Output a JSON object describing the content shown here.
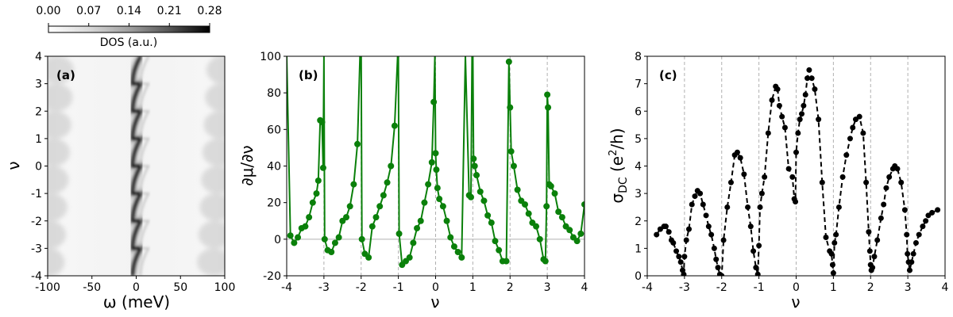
{
  "chart_data": [
    {
      "type": "heatmap",
      "panel_label": "(a)",
      "xlabel": "ω (meV)",
      "ylabel": "ν",
      "xlim": [
        -100,
        100
      ],
      "ylim": [
        -4,
        4
      ],
      "xticks": [
        -100,
        -50,
        0,
        50,
        100
      ],
      "yticks": [
        -4,
        -3,
        -2,
        -1,
        0,
        1,
        2,
        3,
        4
      ],
      "colorbar": {
        "label": "DOS (a.u.)",
        "range": [
          0.0,
          0.28
        ],
        "ticks": [
          "0.00",
          "0.07",
          "0.14",
          "0.21",
          "0.28"
        ],
        "placement": "top",
        "colormap": "greys"
      },
      "description_of_features": "dark vertical streak near ω≈0 meV that zig-zags between integer fillings; scalloped light-gray edges at |ω|≈70–100 meV"
    },
    {
      "type": "line",
      "panel_label": "(b)",
      "xlabel": "ν",
      "ylabel": "∂μ/∂ν",
      "xlim": [
        -4,
        4
      ],
      "ylim": [
        -20,
        100
      ],
      "xticks": [
        -4,
        -3,
        -2,
        -1,
        0,
        1,
        2,
        3,
        4
      ],
      "yticks": [
        -20,
        0,
        20,
        40,
        60,
        80,
        100
      ],
      "grid": "vertical dashed at integers",
      "zero_line": true,
      "color": "#0a800a",
      "marker": "circle",
      "series": [
        {
          "x": [
            -4.0,
            -3.9,
            -3.8,
            -3.7,
            -3.6,
            -3.5,
            -3.4,
            -3.3,
            -3.2,
            -3.15,
            -3.1,
            -3.05,
            -3.02,
            -3.0,
            -2.98,
            -2.9,
            -2.8,
            -2.7,
            -2.6,
            -2.5,
            -2.4,
            -2.3,
            -2.2,
            -2.1,
            -2.03,
            -2.0,
            -1.98,
            -1.9,
            -1.8,
            -1.7,
            -1.6,
            -1.5,
            -1.4,
            -1.3,
            -1.2,
            -1.1,
            -1.02,
            -1.0,
            -0.98,
            -0.9,
            -0.8,
            -0.7,
            -0.6,
            -0.5,
            -0.4,
            -0.3,
            -0.2,
            -0.1,
            -0.05,
            -0.02,
            0.0,
            0.02,
            0.05,
            0.1,
            0.2,
            0.3,
            0.4,
            0.5,
            0.6,
            0.7,
            0.8,
            0.9,
            0.95,
            0.98,
            1.0,
            1.02,
            1.05,
            1.1,
            1.2,
            1.3,
            1.4,
            1.5,
            1.6,
            1.7,
            1.8,
            1.9,
            1.97,
            2.0,
            2.03,
            2.1,
            2.2,
            2.3,
            2.4,
            2.5,
            2.6,
            2.7,
            2.8,
            2.9,
            2.95,
            2.98,
            3.0,
            3.02,
            3.05,
            3.1,
            3.2,
            3.3,
            3.4,
            3.5,
            3.6,
            3.7,
            3.8,
            3.9,
            4.0
          ],
          "y": [
            100,
            2,
            -2,
            1,
            6,
            7,
            12,
            20,
            25,
            32,
            65,
            64,
            39,
            100,
            0,
            -6,
            -7,
            -2,
            1,
            10,
            12,
            18,
            30,
            52,
            100,
            100,
            0,
            -8,
            -10,
            7,
            12,
            18,
            24,
            31,
            40,
            62,
            100,
            100,
            3,
            -14,
            -12,
            -10,
            -2,
            6,
            10,
            20,
            30,
            42,
            75,
            100,
            47,
            38,
            28,
            22,
            18,
            10,
            1,
            -4,
            -7,
            -10,
            100,
            24,
            23,
            100,
            100,
            44,
            40,
            35,
            26,
            21,
            13,
            9,
            -1,
            -6,
            -12,
            -12,
            97,
            72,
            48,
            40,
            27,
            21,
            19,
            14,
            9,
            7,
            0,
            -11,
            -12,
            18,
            79,
            72,
            30,
            29,
            25,
            15,
            12,
            7,
            5,
            1,
            -1,
            3,
            19
          ]
        }
      ]
    },
    {
      "type": "line",
      "panel_label": "(c)",
      "xlabel": "ν",
      "ylabel": "σ_DC (e²/h)",
      "ylabel_parts": {
        "main": "σ",
        "sub": "DC",
        "unit_open": " (e",
        "sup": "2",
        "unit_close": "/h)"
      },
      "xlim": [
        -4,
        4
      ],
      "ylim": [
        0,
        8
      ],
      "xticks": [
        -4,
        -3,
        -2,
        -1,
        0,
        1,
        2,
        3,
        4
      ],
      "yticks": [
        0,
        1,
        2,
        3,
        4,
        5,
        6,
        7,
        8
      ],
      "grid": "vertical dashed at integers",
      "color": "#000000",
      "marker": "circle",
      "linestyle": "dashed",
      "series": [
        {
          "x": [
            -3.75,
            -3.65,
            -3.55,
            -3.5,
            -3.42,
            -3.35,
            -3.3,
            -3.22,
            -3.15,
            -3.1,
            -3.05,
            -3.02,
            -3.0,
            -2.95,
            -2.88,
            -2.8,
            -2.72,
            -2.65,
            -2.58,
            -2.5,
            -2.42,
            -2.35,
            -2.28,
            -2.2,
            -2.15,
            -2.1,
            -2.05,
            -2.02,
            -2.0,
            -1.95,
            -1.85,
            -1.75,
            -1.65,
            -1.58,
            -1.5,
            -1.4,
            -1.3,
            -1.22,
            -1.15,
            -1.08,
            -1.03,
            -1.0,
            -0.97,
            -0.92,
            -0.85,
            -0.75,
            -0.65,
            -0.55,
            -0.5,
            -0.45,
            -0.38,
            -0.3,
            -0.2,
            -0.1,
            -0.05,
            -0.02,
            0.0,
            0.05,
            0.1,
            0.15,
            0.2,
            0.25,
            0.3,
            0.35,
            0.42,
            0.5,
            0.6,
            0.7,
            0.8,
            0.9,
            0.95,
            0.98,
            1.0,
            1.03,
            1.07,
            1.15,
            1.25,
            1.35,
            1.45,
            1.52,
            1.6,
            1.7,
            1.8,
            1.88,
            1.95,
            1.98,
            2.0,
            2.02,
            2.05,
            2.1,
            2.18,
            2.28,
            2.35,
            2.42,
            2.5,
            2.6,
            2.65,
            2.72,
            2.82,
            2.92,
            2.97,
            2.99,
            3.02,
            3.05,
            3.1,
            3.15,
            3.22,
            3.3,
            3.4,
            3.48,
            3.55,
            3.65,
            3.8
          ],
          "y": [
            1.5,
            1.7,
            1.8,
            1.8,
            1.6,
            1.3,
            1.2,
            0.9,
            0.7,
            0.5,
            0.2,
            0.05,
            0.7,
            1.3,
            1.7,
            2.6,
            2.9,
            3.1,
            3.0,
            2.6,
            2.2,
            1.8,
            1.5,
            1.0,
            0.6,
            0.3,
            0.05,
            0.0,
            0.0,
            1.3,
            2.5,
            3.4,
            4.4,
            4.5,
            4.3,
            3.7,
            2.5,
            1.8,
            0.9,
            0.3,
            0.05,
            1.1,
            2.5,
            3.0,
            3.6,
            5.2,
            6.4,
            6.9,
            6.8,
            6.2,
            5.8,
            5.4,
            3.9,
            3.6,
            2.8,
            2.7,
            4.5,
            5.2,
            5.7,
            5.9,
            6.2,
            6.6,
            7.2,
            7.5,
            7.2,
            6.8,
            5.7,
            3.4,
            1.4,
            0.9,
            0.8,
            0.4,
            0.1,
            1.2,
            1.5,
            2.5,
            3.6,
            4.4,
            5.0,
            5.4,
            5.7,
            5.8,
            5.2,
            3.4,
            1.6,
            0.9,
            0.4,
            0.2,
            0.3,
            0.7,
            1.3,
            2.1,
            2.6,
            3.2,
            3.6,
            3.9,
            4.0,
            3.9,
            3.4,
            2.4,
            1.5,
            0.8,
            0.5,
            0.2,
            0.5,
            0.8,
            1.2,
            1.5,
            1.8,
            2.0,
            2.2,
            2.3,
            2.4
          ]
        }
      ]
    }
  ],
  "colors": {
    "panel_b": "#0a800a",
    "panel_c": "#000000",
    "grid": "#b0b0b0"
  }
}
